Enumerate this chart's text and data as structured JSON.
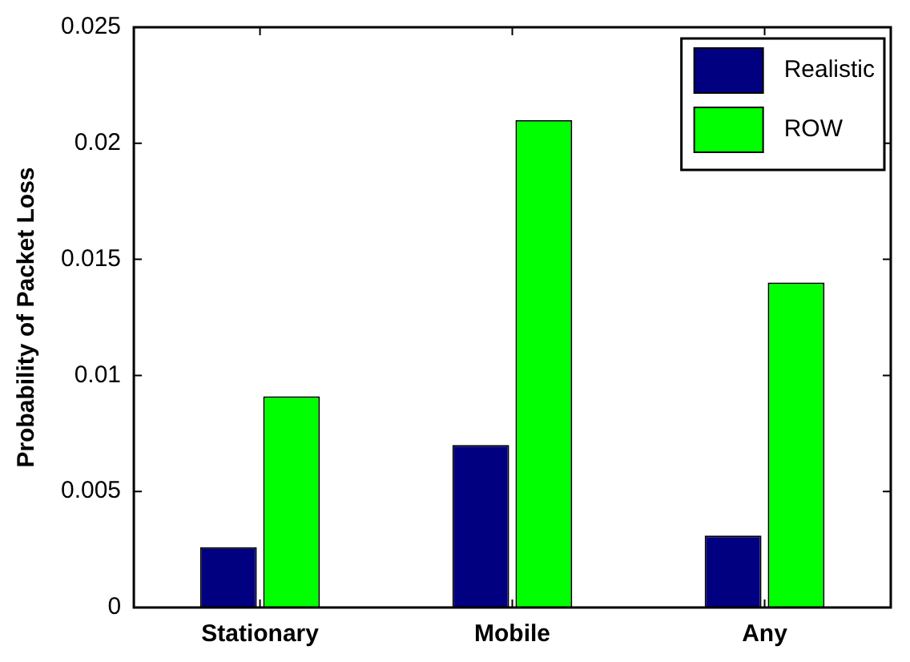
{
  "chart_data": {
    "type": "bar",
    "ylabel": "Probability of Packet Loss",
    "categories": [
      "Stationary",
      "Mobile",
      "Any"
    ],
    "series": [
      {
        "name": "Realistic",
        "color": "#000080",
        "values": [
          0.0026,
          0.007,
          0.0031
        ]
      },
      {
        "name": "ROW",
        "color": "#00ff00",
        "values": [
          0.0091,
          0.021,
          0.014
        ]
      }
    ],
    "ylim": [
      0,
      0.025
    ],
    "yticks": [
      0,
      0.005,
      0.01,
      0.015,
      0.02,
      0.025
    ],
    "grid": false,
    "legend": "top right"
  }
}
